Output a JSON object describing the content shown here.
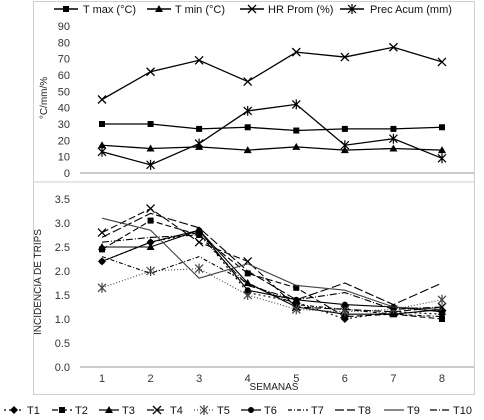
{
  "chart_data": [
    {
      "type": "line",
      "ylabel": "°C/mm/%",
      "ylim": [
        0,
        90
      ],
      "yticks": [
        "0",
        "10",
        "20",
        "30",
        "40",
        "50",
        "60",
        "70",
        "80",
        "90"
      ],
      "x": [
        1,
        2,
        3,
        4,
        5,
        6,
        7,
        8
      ],
      "grid": false,
      "legend": "top",
      "series": [
        {
          "name": "T max (°C)",
          "marker": "square",
          "values": [
            30,
            30,
            27,
            28,
            26,
            27,
            27,
            28
          ]
        },
        {
          "name": "T min (°C)",
          "marker": "triangle",
          "values": [
            17,
            15,
            16,
            14,
            16,
            14,
            15,
            14
          ]
        },
        {
          "name": "HR Prom (%)",
          "marker": "x",
          "values": [
            45,
            62,
            69,
            56,
            74,
            71,
            77,
            68
          ]
        },
        {
          "name": "Prec Acum (mm)",
          "marker": "star",
          "values": [
            13,
            5,
            18,
            38,
            42,
            17,
            21,
            9
          ]
        }
      ]
    },
    {
      "type": "line",
      "xlabel": "SEMANAS",
      "ylabel": "INCIDENCIA DE TRIPS",
      "ylim": [
        0,
        3.5
      ],
      "xticks": [
        "1",
        "2",
        "3",
        "4",
        "5",
        "6",
        "7",
        "8"
      ],
      "yticks": [
        "0.0",
        "0.5",
        "1.0",
        "1.5",
        "2.0",
        "2.5",
        "3.0",
        "3.5"
      ],
      "x": [
        1,
        2,
        3,
        4,
        5,
        6,
        7,
        8
      ],
      "grid": false,
      "legend": "bottom",
      "series": [
        {
          "name": "T1",
          "values": [
            2.2,
            2.6,
            2.8,
            1.55,
            1.35,
            1.0,
            1.15,
            1.1
          ]
        },
        {
          "name": "T2",
          "values": [
            2.45,
            3.05,
            2.75,
            1.95,
            1.65,
            1.05,
            1.1,
            1.0
          ]
        },
        {
          "name": "T3",
          "values": [
            2.5,
            2.5,
            2.85,
            1.75,
            1.25,
            1.1,
            1.1,
            1.2
          ]
        },
        {
          "name": "T4",
          "values": [
            2.8,
            3.3,
            2.6,
            2.2,
            1.25,
            1.2,
            1.15,
            1.25
          ]
        },
        {
          "name": "T5",
          "values": [
            1.65,
            2.0,
            2.05,
            1.5,
            1.2,
            1.15,
            1.2,
            1.4
          ]
        },
        {
          "name": "T6",
          "values": [
            2.2,
            2.6,
            2.85,
            1.6,
            1.4,
            1.3,
            1.25,
            1.15
          ]
        },
        {
          "name": "T7",
          "values": [
            2.3,
            1.95,
            2.3,
            1.75,
            1.3,
            1.2,
            1.1,
            1.05
          ]
        },
        {
          "name": "T8",
          "values": [
            2.7,
            3.2,
            2.9,
            2.0,
            1.4,
            1.75,
            1.3,
            1.75
          ]
        },
        {
          "name": "T9",
          "values": [
            3.1,
            2.85,
            1.85,
            2.15,
            1.7,
            1.6,
            1.25,
            1.2
          ]
        },
        {
          "name": "T10",
          "values": [
            2.6,
            2.7,
            2.75,
            1.7,
            1.4,
            1.55,
            1.2,
            1.25
          ]
        }
      ]
    }
  ]
}
